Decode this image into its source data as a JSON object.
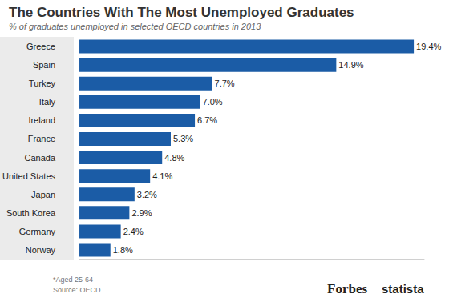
{
  "chart_data": {
    "type": "bar",
    "title": "The Countries With The Most Unemployed Graduates",
    "subtitle": "% of graduates unemployed in selected OECD countries in 2013",
    "categories": [
      "Greece",
      "Spain",
      "Turkey",
      "Italy",
      "Ireland",
      "France",
      "Canada",
      "United States",
      "Japan",
      "South Korea",
      "Germany",
      "Norway"
    ],
    "values": [
      19.4,
      14.9,
      7.7,
      7.0,
      6.7,
      5.3,
      4.8,
      4.1,
      3.2,
      2.9,
      2.4,
      1.8
    ],
    "value_labels": [
      "19.4%",
      "14.9%",
      "7.7%",
      "7.0%",
      "6.7%",
      "5.3%",
      "4.8%",
      "4.1%",
      "3.2%",
      "2.9%",
      "2.4%",
      "1.8%"
    ],
    "color": "#1b5ca6",
    "orientation": "horizontal",
    "data_labels": true,
    "tick_labels": "y",
    "grid": false,
    "xlim": [
      0,
      20
    ],
    "annotations": [
      "*Aged 25-64",
      "Source: OECD",
      "Forbes",
      "statista"
    ]
  }
}
